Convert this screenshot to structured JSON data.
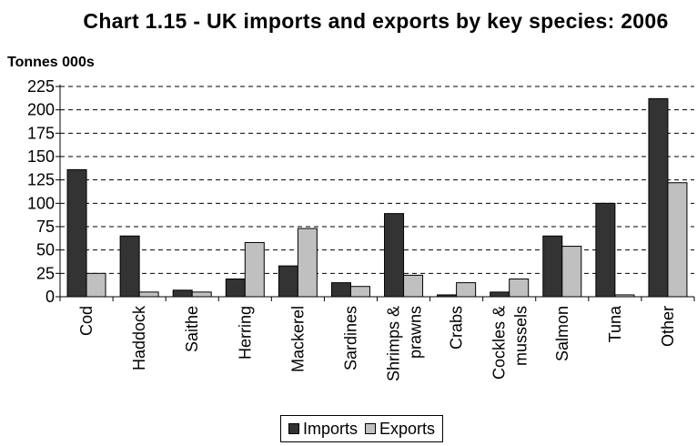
{
  "chart_data": {
    "type": "bar",
    "title": "Chart 1.15 - UK imports and exports by key species: 2006",
    "ylabel": "Tonnes 000s",
    "xlabel": "",
    "ylim": [
      0,
      225
    ],
    "yticks": [
      0,
      25,
      50,
      75,
      100,
      125,
      150,
      175,
      200,
      225
    ],
    "grid": "horizontal dashed",
    "legend_position": "bottom",
    "categories": [
      "Cod",
      "Haddock",
      "Saithe",
      "Herring",
      "Mackerel",
      "Sardines",
      "Shrimps & prawns",
      "Crabs",
      "Cockles & mussels",
      "Salmon",
      "Tuna",
      "Other"
    ],
    "series": [
      {
        "name": "Imports",
        "color": "#333333",
        "values": [
          136,
          65,
          7,
          19,
          33,
          15,
          89,
          2,
          5,
          65,
          100,
          212
        ]
      },
      {
        "name": "Exports",
        "color": "#c0c0c0",
        "values": [
          25,
          5,
          5,
          58,
          73,
          11,
          23,
          15,
          19,
          54,
          2,
          122
        ]
      }
    ]
  }
}
